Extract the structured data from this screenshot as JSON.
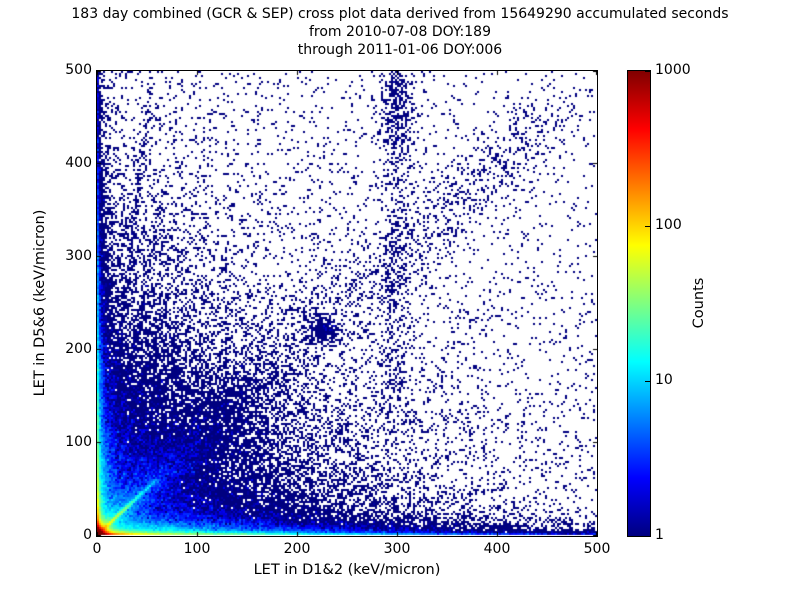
{
  "chart_data": {
    "type": "heatmap",
    "subtype": "2d-histogram-cross-plot",
    "title_lines": [
      "183 day combined (GCR & SEP) cross plot data derived from 15649290 accumulated seconds",
      "from 2010-07-08 DOY:189",
      "through 2011-01-06 DOY:006"
    ],
    "xlabel": "LET in D1&2 (keV/micron)",
    "ylabel": "LET in D5&6 (keV/micron)",
    "xlim": [
      0,
      500
    ],
    "ylim": [
      0,
      500
    ],
    "x_ticks": [
      "0",
      "100",
      "200",
      "300",
      "400",
      "500"
    ],
    "y_ticks": [
      "0",
      "100",
      "200",
      "300",
      "400",
      "500"
    ],
    "grid": false,
    "background": "#ffffff",
    "point_color_min": "#000080",
    "colorbar": {
      "label": "Counts",
      "scale": "log",
      "min": 1,
      "max": 1000,
      "ticks": [
        "1",
        "10",
        "100",
        "1000"
      ],
      "colormap": "jet",
      "position": "right"
    },
    "features": [
      "intense hot spot at origin (counts ~1000, dark red core ringed by orange/yellow/green/cyan)",
      "dense band along x-axis (y~0) spanning 0-500, red-orange near origin fading through yellow/green/cyan to blue",
      "dense band along y-axis (x~0) up to ~500, weaker than bottom band",
      "bright cyan-green diagonal streak y=x from origin to ~(50,50) with broader blue fan to ~(150,150)",
      "steep rays fanning up from origin over x<70",
      "diffuse blue speckle concentrated in lower-left, sparse dots across whole plane",
      "loose vertical column of dots near x~300 from y~120 to 500",
      "diffuse cluster near (226, 221) along faint y=x band"
    ],
    "density_model": {
      "seed": 42,
      "count_scale": 3.2,
      "components": [
        {
          "name": "origin_hotspot",
          "n": 80000,
          "sx": 2.8,
          "sy": 2.8
        },
        {
          "name": "bottom_band",
          "n": 20000,
          "w1": 0.5,
          "exp1": 15,
          "exp2": 150,
          "y_exp": 1.3
        },
        {
          "name": "left_band",
          "n": 13000,
          "w1": 0.5,
          "exp1": 15,
          "exp2": 130,
          "x_exp": 1.2
        },
        {
          "name": "bottom_fuzz",
          "n": 22000,
          "x_exp": 110,
          "y_exp": 7
        },
        {
          "name": "left_fuzz",
          "n": 14000,
          "x_exp": 5,
          "y_exp": 100
        },
        {
          "name": "diag_streak",
          "n": 6000,
          "t_exp": 18,
          "t_max": 60,
          "sigma": 0.9
        },
        {
          "name": "diag_fan",
          "n": 8000,
          "t_exp": 55,
          "t_max": 170,
          "sigma0": 2.5,
          "sigma_slope": 0.14
        },
        {
          "name": "rays",
          "slopes": [
            1.7,
            2.4,
            3.6,
            5.5,
            9
          ],
          "n_each": 700,
          "t_exp": 22,
          "jitter": 1.2
        },
        {
          "name": "bulk_scatter",
          "n": 26000,
          "x_exp": 80,
          "y_exp": 80
        },
        {
          "name": "mid_scatter",
          "n": 6000,
          "x_exp": 160,
          "y_exp": 160
        },
        {
          "name": "uniform_sparse",
          "n": 2200
        },
        {
          "name": "column_300",
          "n": 550,
          "x": 300,
          "sigma": 9,
          "y_min": 120,
          "y_max": 500
        },
        {
          "name": "column_300_top",
          "n": 250,
          "x": 300,
          "sigma": 10,
          "y_min": 420,
          "y_max": 500
        },
        {
          "name": "cluster",
          "n": 260,
          "x": 226,
          "y": 221,
          "sigma": 8
        },
        {
          "name": "faint_diag_band",
          "n": 1500,
          "t_max": 460,
          "sigma": 20
        },
        {
          "name": "left_column_high",
          "n": 300,
          "x_exp": 1.5,
          "y_max": 500
        }
      ]
    }
  }
}
